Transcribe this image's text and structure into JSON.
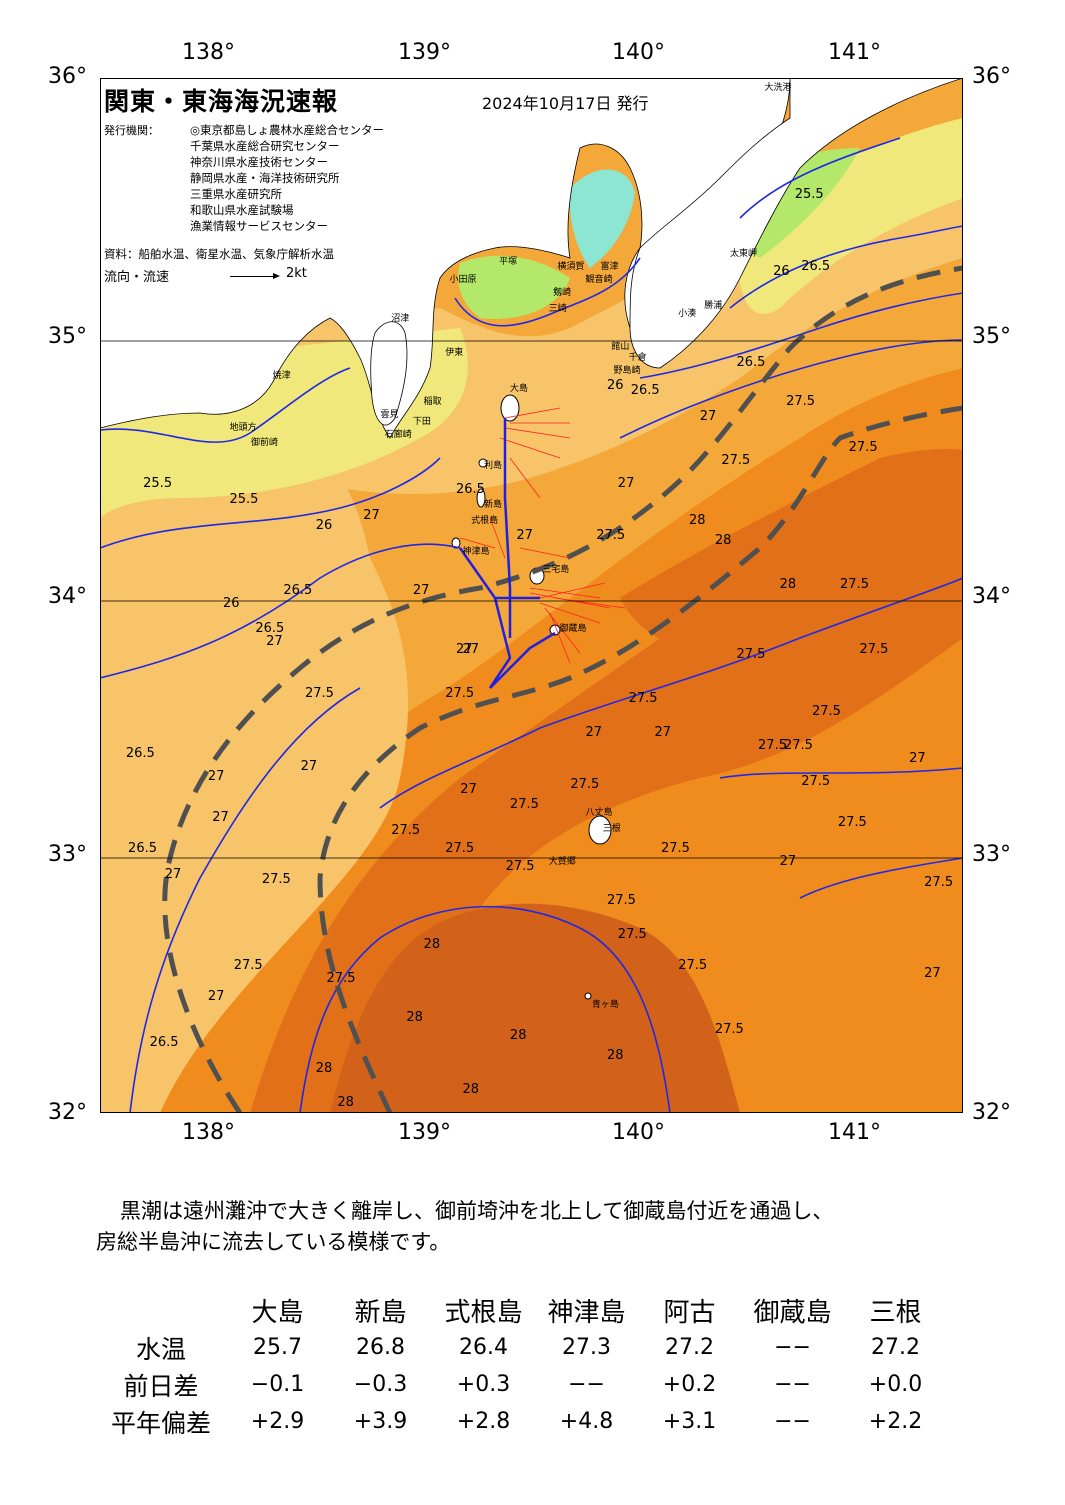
{
  "axes": {
    "lon_top": [
      "138°",
      "139°",
      "140°",
      "141°"
    ],
    "lon_bottom": [
      "138°",
      "139°",
      "140°",
      "141°"
    ],
    "lat_left": [
      "36°",
      "35°",
      "34°",
      "33°",
      "32°"
    ],
    "lat_right": [
      "36°",
      "35°",
      "34°",
      "33°",
      "32°"
    ]
  },
  "map": {
    "title": "関東・東海海況速報",
    "issue_date": "2024年10月17日 発行",
    "publisher_label": "発行機関：",
    "publishers": [
      "◎東京都島しょ農林水産総合センター",
      "千葉県水産総合研究センター",
      "神奈川県水産技術センター",
      "静岡県水産・海洋技術研究所",
      "三重県水産研究所",
      "和歌山県水産試験場",
      "漁業情報サービスセンター"
    ],
    "source": "資料：船舶水温、衛星水温、気象庁解析水温",
    "flow_legend": "流向・流速",
    "flow_unit": "2kt",
    "colors": {
      "land": "#ffffff",
      "t_lt_24": "#8ce6d2",
      "t_24_25": "#b4e86a",
      "t_25_26": "#f0e87a",
      "t_26_265": "#f7c46a",
      "t_265_27": "#f5a83a",
      "t_27_275": "#f08c1e",
      "t_275_28": "#e27018",
      "t_gt_28": "#d2621a",
      "contour": "#1e28e6",
      "kuroshio_axis": "#505050",
      "current_obs": "#ff2020",
      "current_track": "#2020e0"
    },
    "places": [
      {
        "name": "大洗港",
        "lon": 140.58,
        "lat": 36.28
      },
      {
        "name": "太東岬",
        "lon": 140.42,
        "lat": 35.35
      },
      {
        "name": "小湊",
        "lon": 140.18,
        "lat": 35.12
      },
      {
        "name": "勝浦",
        "lon": 140.3,
        "lat": 35.15
      },
      {
        "name": "館山",
        "lon": 139.87,
        "lat": 34.99
      },
      {
        "name": "千倉",
        "lon": 139.95,
        "lat": 34.95
      },
      {
        "name": "野島崎",
        "lon": 139.88,
        "lat": 34.9
      },
      {
        "name": "富津",
        "lon": 139.82,
        "lat": 35.3
      },
      {
        "name": "観音崎",
        "lon": 139.75,
        "lat": 35.25
      },
      {
        "name": "横須賀",
        "lon": 139.62,
        "lat": 35.3
      },
      {
        "name": "平塚",
        "lon": 139.35,
        "lat": 35.32
      },
      {
        "name": "小田原",
        "lon": 139.12,
        "lat": 35.25
      },
      {
        "name": "剱崎",
        "lon": 139.6,
        "lat": 35.2
      },
      {
        "name": "三崎",
        "lon": 139.58,
        "lat": 35.14
      },
      {
        "name": "沼津",
        "lon": 138.85,
        "lat": 35.1
      },
      {
        "name": "伊東",
        "lon": 139.1,
        "lat": 34.97
      },
      {
        "name": "焼津",
        "lon": 138.3,
        "lat": 34.88
      },
      {
        "name": "稲取",
        "lon": 139.0,
        "lat": 34.78
      },
      {
        "name": "下田",
        "lon": 138.95,
        "lat": 34.7
      },
      {
        "name": "雲見",
        "lon": 138.8,
        "lat": 34.73
      },
      {
        "name": "石廊崎",
        "lon": 138.82,
        "lat": 34.65
      },
      {
        "name": "御前崎",
        "lon": 138.2,
        "lat": 34.62
      },
      {
        "name": "地頭方",
        "lon": 138.1,
        "lat": 34.68
      },
      {
        "name": "大島",
        "lon": 139.4,
        "lat": 34.83
      },
      {
        "name": "利島",
        "lon": 139.28,
        "lat": 34.53
      },
      {
        "name": "新島",
        "lon": 139.28,
        "lat": 34.38
      },
      {
        "name": "式根島",
        "lon": 139.22,
        "lat": 34.32
      },
      {
        "name": "神津島",
        "lon": 139.18,
        "lat": 34.2
      },
      {
        "name": "三宅島",
        "lon": 139.55,
        "lat": 34.13
      },
      {
        "name": "御蔵島",
        "lon": 139.63,
        "lat": 33.9
      },
      {
        "name": "八丈島",
        "lon": 139.75,
        "lat": 33.19
      },
      {
        "name": "三根",
        "lon": 139.83,
        "lat": 33.13
      },
      {
        "name": "大賀郷",
        "lon": 139.58,
        "lat": 33.0
      },
      {
        "name": "青ヶ島",
        "lon": 139.78,
        "lat": 32.45
      }
    ],
    "contour_labels": [
      {
        "text": "25.5",
        "lon": 140.72,
        "lat": 35.58
      },
      {
        "text": "26.5",
        "lon": 140.75,
        "lat": 35.3
      },
      {
        "text": "26",
        "lon": 140.62,
        "lat": 35.28
      },
      {
        "text": "26.5",
        "lon": 140.45,
        "lat": 34.93
      },
      {
        "text": "27",
        "lon": 140.28,
        "lat": 34.72
      },
      {
        "text": "27.5",
        "lon": 140.68,
        "lat": 34.78
      },
      {
        "text": "27.5",
        "lon": 140.97,
        "lat": 34.6
      },
      {
        "text": "27.5",
        "lon": 140.38,
        "lat": 34.55
      },
      {
        "text": "26.5",
        "lon": 139.96,
        "lat": 34.82
      },
      {
        "text": "26",
        "lon": 139.85,
        "lat": 34.84
      },
      {
        "text": "27",
        "lon": 139.9,
        "lat": 34.46
      },
      {
        "text": "28",
        "lon": 140.23,
        "lat": 34.32
      },
      {
        "text": "28",
        "lon": 140.35,
        "lat": 34.24
      },
      {
        "text": "27.5",
        "lon": 139.8,
        "lat": 34.26
      },
      {
        "text": "28",
        "lon": 140.65,
        "lat": 34.07
      },
      {
        "text": "27.5",
        "lon": 140.93,
        "lat": 34.07
      },
      {
        "text": "27.5",
        "lon": 141.02,
        "lat": 33.82
      },
      {
        "text": "27.5",
        "lon": 140.45,
        "lat": 33.8
      },
      {
        "text": "27.5",
        "lon": 140.8,
        "lat": 33.58
      },
      {
        "text": "27.5",
        "lon": 139.95,
        "lat": 33.63
      },
      {
        "text": "27",
        "lon": 140.07,
        "lat": 33.5
      },
      {
        "text": "27",
        "lon": 139.75,
        "lat": 33.5
      },
      {
        "text": "27.5",
        "lon": 140.55,
        "lat": 33.45
      },
      {
        "text": "27.5",
        "lon": 140.67,
        "lat": 33.45
      },
      {
        "text": "27",
        "lon": 141.25,
        "lat": 33.4
      },
      {
        "text": "27.5",
        "lon": 140.75,
        "lat": 33.31
      },
      {
        "text": "27.5",
        "lon": 140.92,
        "lat": 33.15
      },
      {
        "text": "27.5",
        "lon": 140.1,
        "lat": 33.05
      },
      {
        "text": "27",
        "lon": 140.65,
        "lat": 33.0
      },
      {
        "text": "27.5",
        "lon": 141.32,
        "lat": 32.92
      },
      {
        "text": "27.5",
        "lon": 139.85,
        "lat": 32.85
      },
      {
        "text": "27.5",
        "lon": 139.9,
        "lat": 32.72
      },
      {
        "text": "27.5",
        "lon": 140.18,
        "lat": 32.6
      },
      {
        "text": "27.5",
        "lon": 140.35,
        "lat": 32.35
      },
      {
        "text": "27",
        "lon": 141.32,
        "lat": 32.57
      },
      {
        "text": "27.5",
        "lon": 139.68,
        "lat": 33.3
      },
      {
        "text": "27.5",
        "lon": 139.4,
        "lat": 33.22
      },
      {
        "text": "27.5",
        "lon": 139.1,
        "lat": 33.05
      },
      {
        "text": "27.5",
        "lon": 138.85,
        "lat": 33.12
      },
      {
        "text": "27.5",
        "lon": 139.38,
        "lat": 32.98
      },
      {
        "text": "27",
        "lon": 139.17,
        "lat": 33.28
      },
      {
        "text": "28",
        "lon": 139.0,
        "lat": 32.68
      },
      {
        "text": "28",
        "lon": 138.92,
        "lat": 32.4
      },
      {
        "text": "28",
        "lon": 139.4,
        "lat": 32.33
      },
      {
        "text": "28",
        "lon": 139.85,
        "lat": 32.25
      },
      {
        "text": "28",
        "lon": 139.18,
        "lat": 32.12
      },
      {
        "text": "28",
        "lon": 138.5,
        "lat": 32.2
      },
      {
        "text": "28",
        "lon": 138.6,
        "lat": 32.03
      },
      {
        "text": "27.5",
        "lon": 138.55,
        "lat": 32.55
      },
      {
        "text": "27.5",
        "lon": 138.12,
        "lat": 32.6
      },
      {
        "text": "27",
        "lon": 138.0,
        "lat": 32.48
      },
      {
        "text": "26.5",
        "lon": 137.73,
        "lat": 32.3
      },
      {
        "text": "27.5",
        "lon": 138.25,
        "lat": 32.93
      },
      {
        "text": "27",
        "lon": 137.8,
        "lat": 32.95
      },
      {
        "text": "26.5",
        "lon": 137.63,
        "lat": 33.05
      },
      {
        "text": "27",
        "lon": 138.02,
        "lat": 33.17
      },
      {
        "text": "27",
        "lon": 138.0,
        "lat": 33.33
      },
      {
        "text": "26.5",
        "lon": 137.62,
        "lat": 33.42
      },
      {
        "text": "27",
        "lon": 138.43,
        "lat": 33.37
      },
      {
        "text": "27.5",
        "lon": 138.45,
        "lat": 33.65
      },
      {
        "text": "27",
        "lon": 138.27,
        "lat": 33.85
      },
      {
        "text": "26.5",
        "lon": 138.22,
        "lat": 33.9
      },
      {
        "text": "27",
        "lon": 138.95,
        "lat": 34.05
      },
      {
        "text": "27",
        "lon": 139.18,
        "lat": 33.82
      },
      {
        "text": "27.5",
        "lon": 139.1,
        "lat": 33.65
      },
      {
        "text": "26.5",
        "lon": 138.35,
        "lat": 34.05
      },
      {
        "text": "26",
        "lon": 138.07,
        "lat": 34.0
      },
      {
        "text": "26",
        "lon": 138.5,
        "lat": 34.3
      },
      {
        "text": "27",
        "lon": 138.72,
        "lat": 34.34
      },
      {
        "text": "25.5",
        "lon": 138.1,
        "lat": 34.4
      },
      {
        "text": "25.5",
        "lon": 137.7,
        "lat": 34.46
      },
      {
        "text": "26.5",
        "lon": 139.15,
        "lat": 34.44
      },
      {
        "text": "27",
        "lon": 139.43,
        "lat": 34.26
      },
      {
        "text": "27",
        "lon": 139.15,
        "lat": 33.82
      }
    ]
  },
  "summary": {
    "line1": "黒潮は遠州灘沖で大きく離岸し、御前埼沖を北上して御蔵島付近を通過し、",
    "line2": "房総半島沖に流去している模様です。"
  },
  "table": {
    "stations": [
      "大島",
      "新島",
      "式根島",
      "神津島",
      "阿古",
      "御蔵島",
      "三根"
    ],
    "rows": [
      {
        "label": "水温",
        "values": [
          "25.7",
          "26.8",
          "26.4",
          "27.3",
          "27.2",
          "−−",
          "27.2"
        ]
      },
      {
        "label": "前日差",
        "values": [
          "−0.1",
          "−0.3",
          "+0.3",
          "−−",
          "+0.2",
          "−−",
          "+0.0"
        ]
      },
      {
        "label": "平年偏差",
        "values": [
          "+2.9",
          "+3.9",
          "+2.8",
          "+4.8",
          "+3.1",
          "−−",
          "+2.2"
        ]
      }
    ]
  }
}
